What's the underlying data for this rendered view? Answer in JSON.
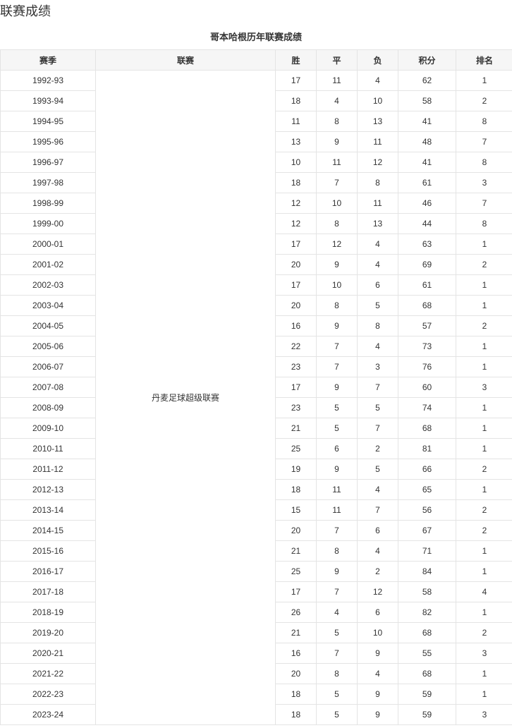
{
  "section_title": "联赛成绩",
  "table_caption": "哥本哈根历年联赛成绩",
  "columns": [
    "赛季",
    "联赛",
    "胜",
    "平",
    "负",
    "积分",
    "排名"
  ],
  "league": "丹麦足球超级联赛",
  "rows": [
    [
      "1992-93",
      17,
      11,
      4,
      62,
      1
    ],
    [
      "1993-94",
      18,
      4,
      10,
      58,
      2
    ],
    [
      "1994-95",
      11,
      8,
      13,
      41,
      8
    ],
    [
      "1995-96",
      13,
      9,
      11,
      48,
      7
    ],
    [
      "1996-97",
      10,
      11,
      12,
      41,
      8
    ],
    [
      "1997-98",
      18,
      7,
      8,
      61,
      3
    ],
    [
      "1998-99",
      12,
      10,
      11,
      46,
      7
    ],
    [
      "1999-00",
      12,
      8,
      13,
      44,
      8
    ],
    [
      "2000-01",
      17,
      12,
      4,
      63,
      1
    ],
    [
      "2001-02",
      20,
      9,
      4,
      69,
      2
    ],
    [
      "2002-03",
      17,
      10,
      6,
      61,
      1
    ],
    [
      "2003-04",
      20,
      8,
      5,
      68,
      1
    ],
    [
      "2004-05",
      16,
      9,
      8,
      57,
      2
    ],
    [
      "2005-06",
      22,
      7,
      4,
      73,
      1
    ],
    [
      "2006-07",
      23,
      7,
      3,
      76,
      1
    ],
    [
      "2007-08",
      17,
      9,
      7,
      60,
      3
    ],
    [
      "2008-09",
      23,
      5,
      5,
      74,
      1
    ],
    [
      "2009-10",
      21,
      5,
      7,
      68,
      1
    ],
    [
      "2010-11",
      25,
      6,
      2,
      81,
      1
    ],
    [
      "2011-12",
      19,
      9,
      5,
      66,
      2
    ],
    [
      "2012-13",
      18,
      11,
      4,
      65,
      1
    ],
    [
      "2013-14",
      15,
      11,
      7,
      56,
      2
    ],
    [
      "2014-15",
      20,
      7,
      6,
      67,
      2
    ],
    [
      "2015-16",
      21,
      8,
      4,
      71,
      1
    ],
    [
      "2016-17",
      25,
      9,
      2,
      84,
      1
    ],
    [
      "2017-18",
      17,
      7,
      12,
      58,
      4
    ],
    [
      "2018-19",
      26,
      4,
      6,
      82,
      1
    ],
    [
      "2019-20",
      21,
      5,
      10,
      68,
      2
    ],
    [
      "2020-21",
      16,
      7,
      9,
      55,
      3
    ],
    [
      "2021-22",
      20,
      8,
      4,
      68,
      1
    ],
    [
      "2022-23",
      18,
      5,
      9,
      59,
      1
    ],
    [
      "2023-24",
      18,
      5,
      9,
      59,
      3
    ]
  ]
}
